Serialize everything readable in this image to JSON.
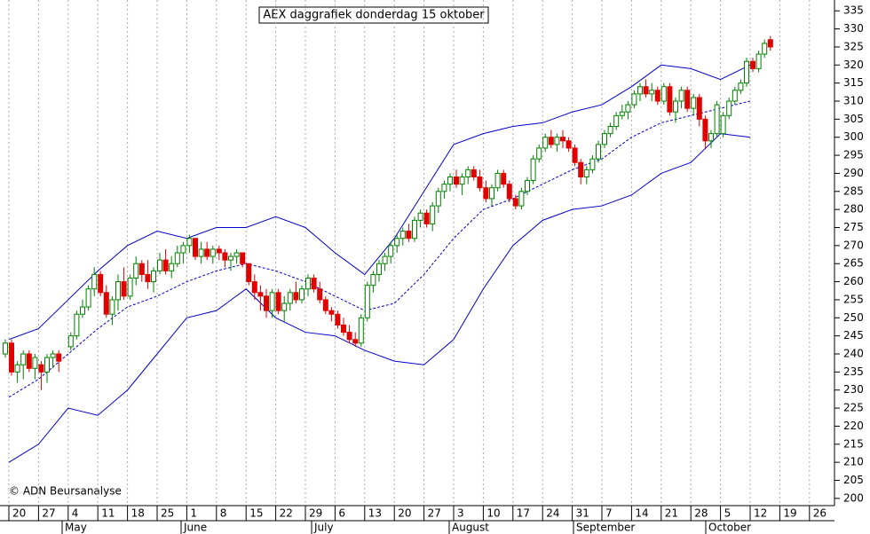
{
  "chart_data": {
    "type": "candlestick",
    "title": "AEX daggrafiek donderdag 15 oktober",
    "annotation": "© ADN Beursanalyse",
    "categories": [
      null,
      "20",
      "27",
      "4",
      "11",
      "18",
      "25",
      "1",
      "8",
      "15",
      "22",
      "29",
      "6",
      "13",
      "20",
      "27",
      "3",
      "10",
      "17",
      "24",
      "31",
      "7",
      "14",
      "21",
      "28",
      "5",
      "12",
      "19",
      "26"
    ],
    "months": [
      "May",
      "June",
      "July",
      "August",
      "September",
      "October"
    ],
    "ylim": [
      198,
      338
    ],
    "yticks": [
      200,
      205,
      210,
      215,
      220,
      225,
      230,
      235,
      240,
      245,
      250,
      255,
      260,
      265,
      270,
      275,
      280,
      285,
      290,
      295,
      300,
      305,
      310,
      315,
      320,
      325,
      330,
      335
    ],
    "up_color": "#008000",
    "down_color": "#e00000",
    "band_color": "#0000cc",
    "candles": [
      [
        null,
        null,
        null,
        null,
        [
          240,
          244,
          239,
          243
        ]
      ],
      [
        [
          243,
          244,
          234,
          235
        ],
        [
          235,
          238,
          232,
          237
        ],
        [
          237,
          241,
          233,
          240
        ],
        [
          240,
          241,
          235,
          236
        ],
        [
          236,
          240,
          233,
          239
        ]
      ],
      [
        [
          237,
          238,
          230,
          235
        ],
        [
          235,
          240,
          232,
          239
        ],
        [
          239,
          241,
          236,
          240
        ],
        [
          240,
          241,
          235,
          238
        ],
        null
      ],
      [
        [
          242,
          246,
          241,
          245
        ],
        [
          245,
          252,
          244,
          251
        ],
        [
          251,
          255,
          250,
          253
        ],
        [
          253,
          259,
          252,
          258
        ],
        [
          258,
          264,
          256,
          262
        ]
      ],
      [
        [
          262,
          263,
          256,
          257
        ],
        [
          257,
          259,
          250,
          251
        ],
        [
          251,
          256,
          248,
          255
        ],
        [
          255,
          262,
          252,
          260
        ],
        [
          260,
          264,
          255,
          256
        ]
      ],
      [
        [
          256,
          262,
          255,
          261
        ],
        [
          261,
          267,
          259,
          265
        ],
        [
          265,
          266,
          260,
          262
        ],
        [
          262,
          266,
          258,
          260
        ],
        [
          260,
          264,
          257,
          263
        ]
      ],
      [
        [
          263,
          268,
          262,
          266
        ],
        [
          266,
          269,
          262,
          263
        ],
        [
          263,
          267,
          261,
          265
        ],
        [
          265,
          270,
          264,
          268
        ],
        [
          268,
          271,
          265,
          270
        ]
      ],
      [
        [
          270,
          273,
          268,
          272
        ],
        [
          272,
          272,
          266,
          267
        ],
        [
          267,
          271,
          265,
          269
        ],
        [
          269,
          271,
          266,
          267
        ],
        [
          267,
          270,
          265,
          269
        ]
      ],
      [
        [
          269,
          270,
          266,
          268
        ],
        [
          268,
          269,
          264,
          266
        ],
        [
          266,
          268,
          263,
          267
        ],
        [
          267,
          269,
          265,
          268
        ],
        [
          268,
          268,
          264,
          265
        ]
      ],
      [
        [
          265,
          265,
          259,
          260
        ],
        [
          260,
          262,
          255,
          257
        ],
        [
          257,
          259,
          252,
          256
        ],
        [
          256,
          258,
          250,
          252
        ],
        [
          252,
          258,
          250,
          257
        ]
      ],
      [
        [
          257,
          258,
          251,
          252
        ],
        [
          252,
          256,
          249,
          254
        ],
        [
          254,
          258,
          252,
          257
        ],
        [
          257,
          260,
          254,
          255
        ],
        [
          255,
          259,
          254,
          258
        ]
      ],
      [
        [
          258,
          262,
          256,
          261
        ],
        [
          261,
          262,
          257,
          258
        ],
        [
          258,
          260,
          254,
          255
        ],
        [
          255,
          256,
          251,
          252
        ],
        [
          252,
          253,
          249,
          251
        ]
      ],
      [
        [
          251,
          252,
          247,
          248
        ],
        [
          248,
          250,
          245,
          246
        ],
        [
          246,
          248,
          243,
          244
        ],
        [
          244,
          246,
          242,
          243
        ],
        [
          243,
          251,
          242,
          250
        ]
      ],
      [
        [
          250,
          260,
          249,
          259
        ],
        [
          259,
          263,
          257,
          262
        ],
        [
          262,
          266,
          260,
          265
        ],
        [
          265,
          268,
          263,
          267
        ],
        [
          267,
          271,
          265,
          270
        ]
      ],
      [
        [
          270,
          273,
          268,
          272
        ],
        [
          272,
          275,
          270,
          274
        ],
        [
          274,
          276,
          271,
          272
        ],
        [
          272,
          278,
          271,
          277
        ],
        [
          277,
          280,
          275,
          279
        ]
      ],
      [
        [
          279,
          280,
          275,
          276
        ],
        [
          276,
          282,
          274,
          281
        ],
        [
          281,
          286,
          279,
          285
        ],
        [
          285,
          288,
          283,
          287
        ],
        [
          287,
          290,
          285,
          289
        ]
      ],
      [
        [
          289,
          291,
          286,
          287
        ],
        [
          287,
          290,
          284,
          289
        ],
        [
          289,
          292,
          287,
          291
        ],
        [
          291,
          292,
          288,
          289
        ],
        [
          289,
          291,
          285,
          286
        ]
      ],
      [
        [
          286,
          288,
          282,
          283
        ],
        [
          283,
          287,
          281,
          286
        ],
        [
          286,
          291,
          285,
          290
        ],
        [
          290,
          291,
          286,
          287
        ],
        [
          287,
          288,
          282,
          283
        ]
      ],
      [
        [
          283,
          284,
          280,
          281
        ],
        [
          281,
          286,
          280,
          285
        ],
        [
          285,
          289,
          284,
          288
        ],
        [
          288,
          295,
          287,
          294
        ],
        [
          294,
          298,
          293,
          297
        ]
      ],
      [
        [
          297,
          301,
          296,
          300
        ],
        [
          300,
          302,
          297,
          298
        ],
        [
          298,
          301,
          296,
          300
        ],
        [
          300,
          302,
          297,
          299
        ],
        [
          299,
          300,
          296,
          297
        ]
      ],
      [
        [
          297,
          298,
          292,
          293
        ],
        [
          293,
          294,
          287,
          289
        ],
        [
          289,
          292,
          287,
          291
        ],
        [
          291,
          295,
          290,
          294
        ],
        [
          294,
          299,
          293,
          298
        ]
      ],
      [
        [
          298,
          302,
          297,
          301
        ],
        [
          301,
          304,
          300,
          303
        ],
        [
          303,
          307,
          302,
          306
        ],
        [
          306,
          309,
          305,
          307
        ],
        [
          307,
          310,
          305,
          309
        ]
      ],
      [
        [
          309,
          313,
          308,
          312
        ],
        [
          312,
          315,
          310,
          314
        ],
        [
          314,
          316,
          311,
          312
        ],
        [
          312,
          315,
          310,
          313
        ],
        [
          313,
          314,
          309,
          310
        ]
      ],
      [
        [
          310,
          315,
          309,
          314
        ],
        [
          314,
          315,
          306,
          307
        ],
        [
          307,
          311,
          304,
          310
        ],
        [
          310,
          314,
          308,
          313
        ],
        [
          313,
          314,
          307,
          308
        ]
      ],
      [
        [
          308,
          312,
          306,
          311
        ],
        [
          311,
          312,
          303,
          305
        ],
        [
          305,
          306,
          297,
          299
        ],
        [
          299,
          302,
          297,
          301
        ],
        [
          301,
          310,
          300,
          309
        ]
      ],
      [
        [
          301,
          307,
          300,
          306
        ],
        [
          306,
          311,
          305,
          310
        ],
        [
          310,
          314,
          309,
          313
        ],
        [
          313,
          316,
          312,
          315
        ],
        [
          315,
          322,
          314,
          321
        ]
      ],
      [
        [
          321,
          322,
          318,
          319
        ],
        [
          319,
          324,
          318,
          323
        ],
        [
          323,
          327,
          322,
          326
        ],
        [
          327,
          328,
          324,
          325
        ],
        null
      ]
    ],
    "bands": {
      "upper": [
        null,
        244,
        247,
        255,
        263,
        270,
        274,
        272,
        275,
        275,
        278,
        275,
        268,
        262,
        272,
        285,
        298,
        301,
        303,
        304,
        307,
        309,
        314,
        320,
        319,
        316,
        320,
        null,
        null
      ],
      "middle": [
        null,
        228,
        233,
        240,
        247,
        253,
        256,
        260,
        263,
        265,
        263,
        260,
        256,
        252,
        254,
        262,
        272,
        280,
        283,
        287,
        291,
        294,
        300,
        304,
        306,
        308,
        310,
        null,
        null
      ],
      "lower": [
        null,
        210,
        215,
        225,
        223,
        230,
        240,
        250,
        252,
        258,
        250,
        246,
        245,
        241,
        238,
        237,
        244,
        258,
        270,
        277,
        280,
        281,
        284,
        290,
        293,
        301,
        300,
        null,
        null
      ]
    }
  }
}
